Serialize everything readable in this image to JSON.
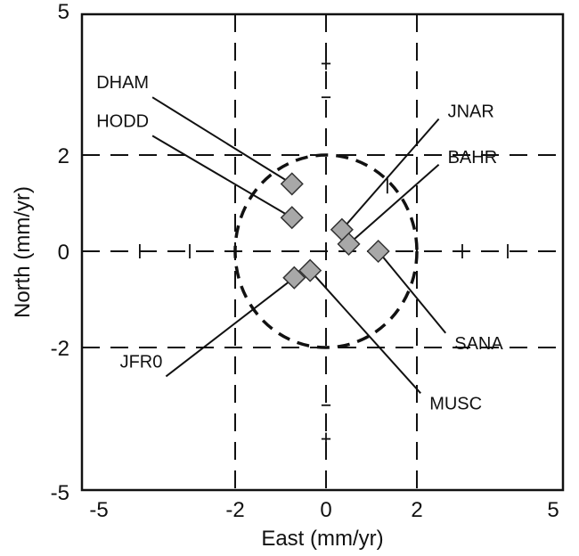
{
  "chart_data": {
    "type": "scatter",
    "xlabel": "East (mm/yr)",
    "ylabel": "North (mm/yr)",
    "xlim": [
      -5,
      5
    ],
    "ylim": [
      -5,
      5
    ],
    "xticks": [
      {
        "value": -5,
        "label": "-5"
      },
      {
        "value": -2,
        "label": "-2"
      },
      {
        "value": 0,
        "label": "0"
      },
      {
        "value": 2,
        "label": "2"
      },
      {
        "value": 5,
        "label": "5"
      }
    ],
    "yticks": [
      {
        "value": 5,
        "label": "5"
      },
      {
        "value": 2,
        "label": "2"
      },
      {
        "value": 0,
        "label": "0"
      },
      {
        "value": -2,
        "label": "-2"
      },
      {
        "value": -5,
        "label": "-5"
      }
    ],
    "reference_lines": {
      "x": [
        -2,
        0,
        2
      ],
      "y": [
        -2,
        0,
        2
      ],
      "style": "dashed"
    },
    "circle": {
      "center": [
        0,
        0
      ],
      "radius": 2,
      "style": "dashed"
    },
    "points": [
      {
        "name": "DHAM",
        "x": -0.75,
        "y": 1.4,
        "label_x": -3.9,
        "label_y": 3.2
      },
      {
        "name": "HODD",
        "x": -0.75,
        "y": 0.7,
        "label_x": -3.9,
        "label_y": 2.4
      },
      {
        "name": "JNAR",
        "x": 0.35,
        "y": 0.45,
        "label_x": 2.6,
        "label_y": 2.75
      },
      {
        "name": "BAHR",
        "x": 0.5,
        "y": 0.15,
        "label_x": 2.6,
        "label_y": 1.8
      },
      {
        "name": "SANA",
        "x": 1.15,
        "y": 0.0,
        "label_x": 2.75,
        "label_y": -1.7
      },
      {
        "name": "JFR0",
        "x": -0.7,
        "y": -0.55,
        "label_x": -3.6,
        "label_y": -2.6
      },
      {
        "name": "MUSC",
        "x": -0.35,
        "y": -0.4,
        "label_x": 2.2,
        "label_y": -2.95
      }
    ],
    "marker": {
      "shape": "diamond",
      "fill": "#a8a8a8",
      "stroke": "#333333"
    },
    "grid": false
  }
}
